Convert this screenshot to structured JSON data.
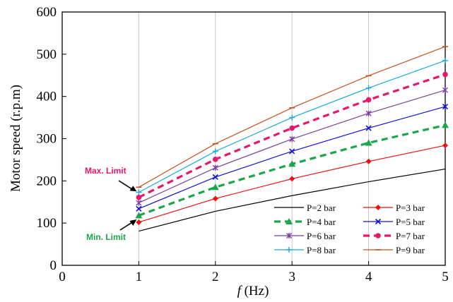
{
  "chart_data": {
    "type": "line",
    "x": [
      1,
      2,
      3,
      4,
      5
    ],
    "xlabel_italic": "f",
    "xlabel_rest": " (Hz)",
    "ylabel": "Motor speed (r.p.m)",
    "xlim": [
      0,
      5
    ],
    "ylim": [
      0,
      600
    ],
    "xticks": [
      "0",
      "1",
      "2",
      "3",
      "4",
      "5"
    ],
    "yticks": [
      "0",
      "100",
      "200",
      "300",
      "400",
      "500",
      "600"
    ],
    "grid": "vertical",
    "legend_placement": "bottom-right",
    "series": [
      {
        "name": "P=2 bar",
        "values": [
          81,
          128,
          165,
          198,
          228
        ],
        "color": "#000000",
        "width": 1.2,
        "dash": "",
        "marker": "none"
      },
      {
        "name": "P=3 bar",
        "values": [
          102,
          158,
          205,
          246,
          284
        ],
        "color": "#ee1111",
        "width": 1.2,
        "dash": "",
        "marker": "diamond"
      },
      {
        "name": "P=4 bar",
        "values": [
          118,
          185,
          240,
          290,
          332
        ],
        "color": "#1aa64a",
        "width": 3.2,
        "dash": "9,6",
        "marker": "triangle"
      },
      {
        "name": "P=5 bar",
        "values": [
          134,
          209,
          270,
          325,
          376
        ],
        "color": "#1111dd",
        "width": 1.2,
        "dash": "",
        "marker": "x"
      },
      {
        "name": "P=6 bar",
        "values": [
          148,
          231,
          299,
          360,
          415
        ],
        "color": "#7b3fa0",
        "width": 1.2,
        "dash": "",
        "marker": "asterisk"
      },
      {
        "name": "P=7 bar",
        "values": [
          161,
          251,
          325,
          392,
          452
        ],
        "color": "#e8176b",
        "width": 3.2,
        "dash": "9,6",
        "marker": "circle"
      },
      {
        "name": "P=8 bar",
        "values": [
          173,
          270,
          350,
          420,
          485
        ],
        "color": "#1ca9e0",
        "width": 1.2,
        "dash": "",
        "marker": "plus"
      },
      {
        "name": "P=9 bar",
        "values": [
          185,
          288,
          373,
          449,
          518
        ],
        "color": "#c8501e",
        "width": 1.2,
        "dash": "",
        "marker": "dash"
      }
    ],
    "annotations": [
      {
        "text": "Max. Limit",
        "color": "#e8176b",
        "points_to_x": 1,
        "points_to_y": 170
      },
      {
        "text": "Min. Limit",
        "color": "#1aa64a",
        "points_to_x": 1,
        "points_to_y": 112
      }
    ]
  }
}
